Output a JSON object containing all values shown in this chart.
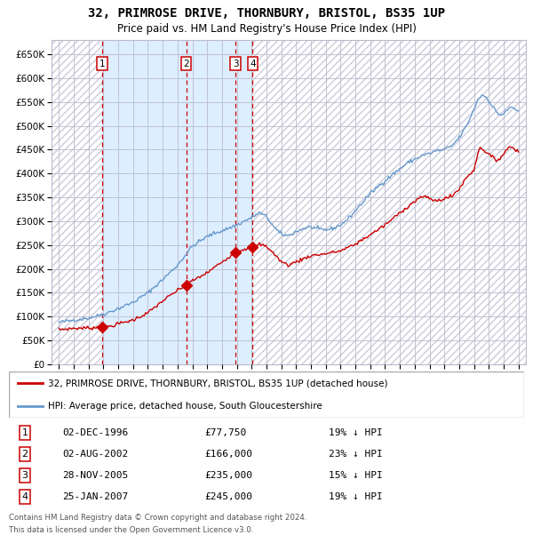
{
  "title": "32, PRIMROSE DRIVE, THORNBURY, BRISTOL, BS35 1UP",
  "subtitle": "Price paid vs. HM Land Registry's House Price Index (HPI)",
  "legend_line1": "32, PRIMROSE DRIVE, THORNBURY, BRISTOL, BS35 1UP (detached house)",
  "legend_line2": "HPI: Average price, detached house, South Gloucestershire",
  "footer1": "Contains HM Land Registry data © Crown copyright and database right 2024.",
  "footer2": "This data is licensed under the Open Government Licence v3.0.",
  "transactions": [
    {
      "num": 1,
      "date": "02-DEC-1996",
      "price": 77750,
      "pct": "19%",
      "dir": "↓",
      "x_year": 1996.92
    },
    {
      "num": 2,
      "date": "02-AUG-2002",
      "price": 166000,
      "pct": "23%",
      "dir": "↓",
      "x_year": 2002.58
    },
    {
      "num": 3,
      "date": "28-NOV-2005",
      "price": 235000,
      "pct": "15%",
      "dir": "↓",
      "x_year": 2005.91
    },
    {
      "num": 4,
      "date": "25-JAN-2007",
      "price": 245000,
      "pct": "19%",
      "dir": "↓",
      "x_year": 2007.07
    }
  ],
  "ylim": [
    0,
    680000
  ],
  "xlim": [
    1993.5,
    2025.5
  ],
  "red_color": "#cc0000",
  "blue_color": "#6699cc",
  "grid_color": "#bbbbcc",
  "shaded_color": "#ddeeff",
  "hatch_color": "#ccccdd",
  "hpi_anchors": [
    [
      1994.0,
      88000
    ],
    [
      1995.0,
      93000
    ],
    [
      1996.0,
      97000
    ],
    [
      1997.0,
      105000
    ],
    [
      1998.0,
      117000
    ],
    [
      1999.0,
      130000
    ],
    [
      2000.0,
      150000
    ],
    [
      2001.0,
      178000
    ],
    [
      2002.0,
      208000
    ],
    [
      2002.5,
      228000
    ],
    [
      2003.0,
      248000
    ],
    [
      2003.5,
      258000
    ],
    [
      2004.0,
      268000
    ],
    [
      2004.5,
      275000
    ],
    [
      2005.0,
      280000
    ],
    [
      2005.5,
      286000
    ],
    [
      2006.0,
      292000
    ],
    [
      2006.5,
      300000
    ],
    [
      2007.0,
      308000
    ],
    [
      2007.5,
      318000
    ],
    [
      2008.0,
      310000
    ],
    [
      2008.5,
      288000
    ],
    [
      2009.0,
      272000
    ],
    [
      2009.5,
      270000
    ],
    [
      2010.0,
      278000
    ],
    [
      2010.5,
      285000
    ],
    [
      2011.0,
      288000
    ],
    [
      2011.5,
      283000
    ],
    [
      2012.0,
      282000
    ],
    [
      2012.5,
      285000
    ],
    [
      2013.0,
      292000
    ],
    [
      2013.5,
      305000
    ],
    [
      2014.0,
      322000
    ],
    [
      2014.5,
      340000
    ],
    [
      2015.0,
      358000
    ],
    [
      2015.5,
      372000
    ],
    [
      2016.0,
      385000
    ],
    [
      2016.5,
      398000
    ],
    [
      2017.0,
      410000
    ],
    [
      2017.5,
      422000
    ],
    [
      2018.0,
      430000
    ],
    [
      2018.5,
      438000
    ],
    [
      2019.0,
      442000
    ],
    [
      2019.5,
      448000
    ],
    [
      2020.0,
      450000
    ],
    [
      2020.5,
      458000
    ],
    [
      2021.0,
      475000
    ],
    [
      2021.5,
      500000
    ],
    [
      2022.0,
      535000
    ],
    [
      2022.3,
      558000
    ],
    [
      2022.6,
      565000
    ],
    [
      2022.9,
      558000
    ],
    [
      2023.2,
      542000
    ],
    [
      2023.5,
      530000
    ],
    [
      2023.8,
      522000
    ],
    [
      2024.1,
      528000
    ],
    [
      2024.5,
      540000
    ],
    [
      2024.8,
      535000
    ],
    [
      2025.0,
      530000
    ]
  ],
  "red_anchors": [
    [
      1994.0,
      73000
    ],
    [
      1995.0,
      75500
    ],
    [
      1996.0,
      76500
    ],
    [
      1996.92,
      77750
    ],
    [
      1997.5,
      80000
    ],
    [
      1998.0,
      85000
    ],
    [
      1999.0,
      93000
    ],
    [
      2000.0,
      108000
    ],
    [
      2001.0,
      133000
    ],
    [
      2002.0,
      155000
    ],
    [
      2002.58,
      166000
    ],
    [
      2003.0,
      175000
    ],
    [
      2004.0,
      192000
    ],
    [
      2005.0,
      215000
    ],
    [
      2005.91,
      235000
    ],
    [
      2006.5,
      242000
    ],
    [
      2007.07,
      245000
    ],
    [
      2007.5,
      252000
    ],
    [
      2008.0,
      248000
    ],
    [
      2008.5,
      232000
    ],
    [
      2009.0,
      215000
    ],
    [
      2009.5,
      208000
    ],
    [
      2010.0,
      215000
    ],
    [
      2011.0,
      228000
    ],
    [
      2012.0,
      232000
    ],
    [
      2013.0,
      238000
    ],
    [
      2014.0,
      252000
    ],
    [
      2015.0,
      272000
    ],
    [
      2016.0,
      292000
    ],
    [
      2017.0,
      318000
    ],
    [
      2018.0,
      342000
    ],
    [
      2018.5,
      352000
    ],
    [
      2019.0,
      348000
    ],
    [
      2019.5,
      342000
    ],
    [
      2020.0,
      348000
    ],
    [
      2020.5,
      352000
    ],
    [
      2021.0,
      368000
    ],
    [
      2021.5,
      392000
    ],
    [
      2022.0,
      408000
    ],
    [
      2022.3,
      448000
    ],
    [
      2022.5,
      455000
    ],
    [
      2022.8,
      445000
    ],
    [
      2023.0,
      440000
    ],
    [
      2023.3,
      432000
    ],
    [
      2023.6,
      428000
    ],
    [
      2023.9,
      438000
    ],
    [
      2024.1,
      445000
    ],
    [
      2024.4,
      458000
    ],
    [
      2024.7,
      452000
    ],
    [
      2025.0,
      448000
    ]
  ]
}
